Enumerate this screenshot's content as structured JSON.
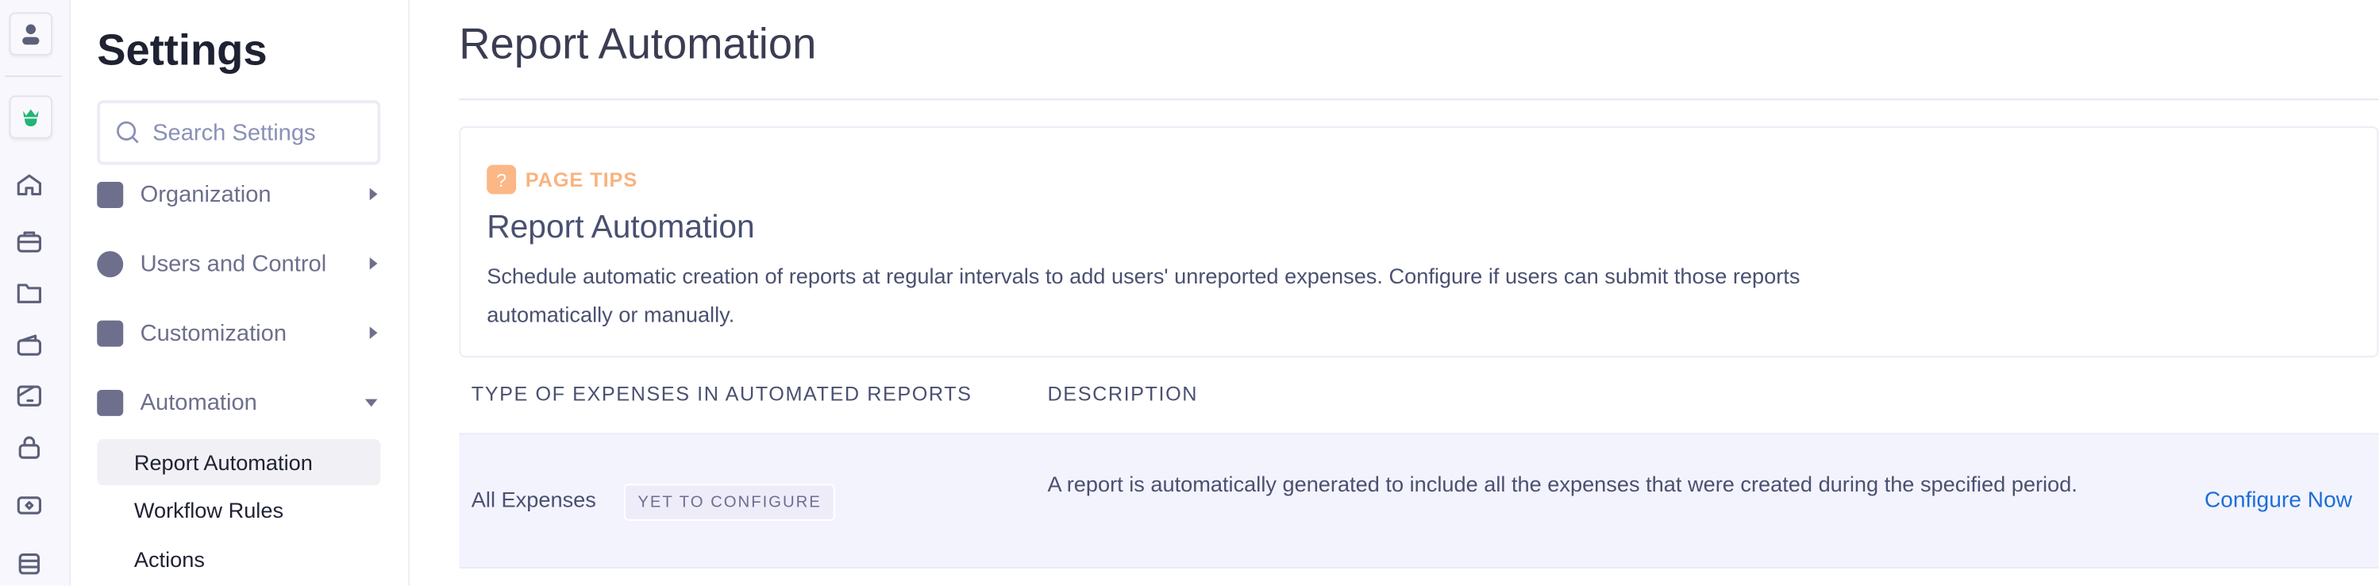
{
  "rail": {
    "icons": [
      "user-icon",
      "crown-logo-icon",
      "home-icon",
      "briefcase-icon",
      "folder-icon",
      "wallet-icon",
      "receipt-icon",
      "bag-icon",
      "money-icon",
      "card-icon"
    ]
  },
  "settings": {
    "title": "Settings",
    "search_placeholder": "Search Settings",
    "nav": [
      {
        "label": "Organization",
        "expanded": false
      },
      {
        "label": "Users and Control",
        "expanded": false
      },
      {
        "label": "Customization",
        "expanded": false
      },
      {
        "label": "Automation",
        "expanded": true
      }
    ],
    "sub_items": [
      {
        "label": "Report Automation",
        "active": true
      },
      {
        "label": "Workflow Rules",
        "active": false
      },
      {
        "label": "Actions",
        "active": false
      }
    ]
  },
  "main": {
    "title": "Report Automation",
    "tips": {
      "tag": "PAGE TIPS",
      "heading": "Report Automation",
      "text": "Schedule automatic creation of reports at regular intervals to add users' unreported expenses. Configure if users can submit those reports automatically or manually."
    },
    "table": {
      "headers": [
        "TYPE OF EXPENSES IN AUTOMATED REPORTS",
        "DESCRIPTION"
      ],
      "rows": [
        {
          "type": "All Expenses",
          "status": "YET TO CONFIGURE",
          "description": "A report is automatically generated to include all the expenses that were created during the specified period.",
          "action": "Configure Now"
        }
      ]
    }
  },
  "colors": {
    "accent": "#1c6fd8",
    "tips": "#fbb785",
    "brand": "#22b573"
  }
}
